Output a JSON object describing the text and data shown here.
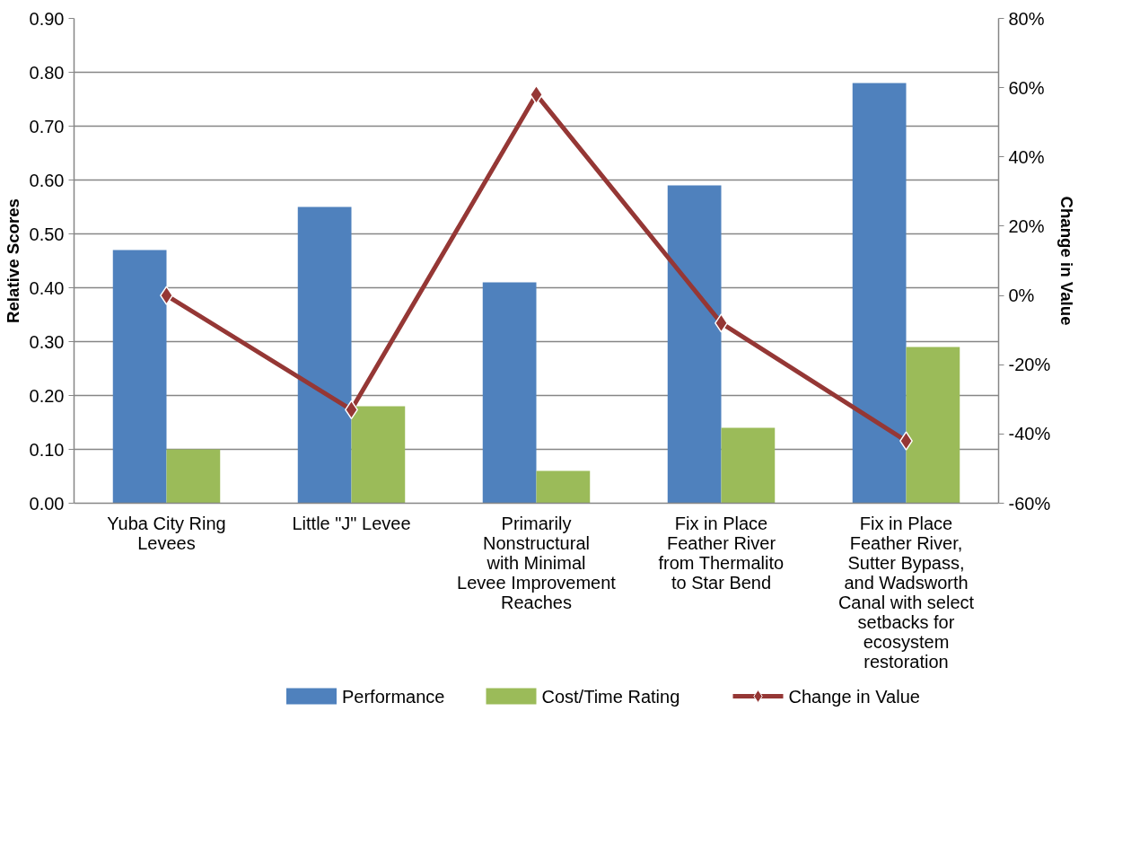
{
  "chart_data": {
    "type": "bar",
    "ylabel": "Relative Scores",
    "y2label": "Change in Value",
    "categories": [
      "Yuba City Ring Levees",
      "Little \"J\" Levee",
      "Primarily Nonstructural with Minimal Levee Improvement Reaches",
      "Fix in Place Feather River from Thermalito to Star Bend",
      "Fix in Place Feather River, Sutter Bypass, and Wadsworth Canal with select setbacks for ecosystem restoration"
    ],
    "series": [
      {
        "name": "Performance",
        "color": "#4f81bd",
        "values": [
          0.47,
          0.55,
          0.41,
          0.59,
          0.78
        ]
      },
      {
        "name": "Cost/Time Rating",
        "color": "#9bbb59",
        "values": [
          0.1,
          0.18,
          0.06,
          0.14,
          0.29
        ]
      },
      {
        "name": "Change in Value",
        "type": "line",
        "axis": "y2",
        "color": "#953735",
        "marker": "diamond",
        "values": [
          0,
          -33,
          58,
          -8,
          -42
        ]
      }
    ],
    "ylim": [
      0,
      0.9
    ],
    "yticks": [
      {
        "value": 0,
        "label": "0.00"
      },
      {
        "value": 0.1,
        "label": "0.10"
      },
      {
        "value": 0.2,
        "label": "0.20"
      },
      {
        "value": 0.3,
        "label": "0.30"
      },
      {
        "value": 0.4,
        "label": "0.40"
      },
      {
        "value": 0.5,
        "label": "0.50"
      },
      {
        "value": 0.6,
        "label": "0.60"
      },
      {
        "value": 0.7,
        "label": "0.70"
      },
      {
        "value": 0.8,
        "label": "0.80"
      },
      {
        "value": 0.9,
        "label": "0.90"
      }
    ],
    "y2lim": [
      -60,
      80
    ],
    "y2ticks": [
      {
        "value": -60,
        "label": "-60%"
      },
      {
        "value": -40,
        "label": "-40%"
      },
      {
        "value": -20,
        "label": "-20%"
      },
      {
        "value": 0,
        "label": "0%"
      },
      {
        "value": 20,
        "label": "20%"
      },
      {
        "value": 40,
        "label": "40%"
      },
      {
        "value": 60,
        "label": "60%"
      },
      {
        "value": 80,
        "label": "80%"
      }
    ],
    "grid": "y",
    "legend": "bottom"
  }
}
